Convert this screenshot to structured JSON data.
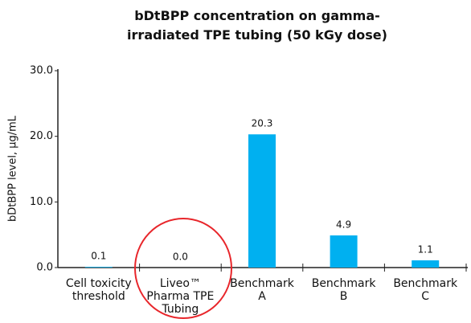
{
  "chart_data": {
    "type": "bar",
    "title": "bDtBPP concentration on gamma-irradiated TPE tubing (50 kGy dose)",
    "y_label": "bDtBPP level, µg/mL",
    "categories": [
      "Cell toxicity threshold",
      "Liveo™ Pharma TPE Tubing",
      "Benchmark A",
      "Benchmark B",
      "Benchmark C"
    ],
    "values": [
      0.1,
      0.0,
      20.3,
      4.9,
      1.1
    ],
    "value_labels": [
      "0.1",
      "0.0",
      "20.3",
      "4.9",
      "1.1"
    ],
    "color": "#00b0f0",
    "ylim": [
      0,
      30
    ],
    "yticks": [
      {
        "value": 0,
        "label": "0.0"
      },
      {
        "value": 10,
        "label": "10.0"
      },
      {
        "value": 20,
        "label": "20.0"
      },
      {
        "value": 30,
        "label": "30.0"
      }
    ],
    "grid": false
  }
}
